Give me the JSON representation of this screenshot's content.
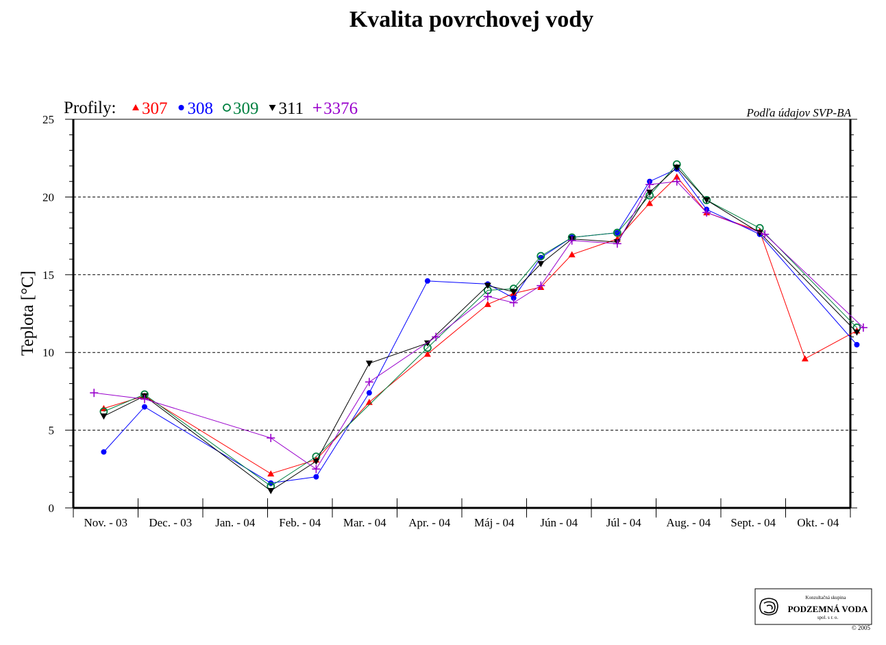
{
  "colors": {
    "s307": "#ff0000",
    "s308": "#0000ff",
    "s309": "#008040",
    "s311": "#000000",
    "s3376": "#9900cc"
  },
  "legend": {
    "prefix": "Profily:"
  },
  "source_note": "Podľa údajov SVP-BA",
  "logo": {
    "line1": "Konzultačná skupina",
    "line2": "PODZEMNÁ VODA",
    "line3": "spol. s r. o.",
    "copyright": "© 2005"
  },
  "chart_data": {
    "type": "line",
    "title": "Kvalita povrchovej vody",
    "ylabel": "Teplota [°C]",
    "xlabel": "",
    "ylim": [
      0,
      25
    ],
    "yticks": [
      0,
      5,
      10,
      15,
      20,
      25
    ],
    "grid": "horizontal-dashed",
    "legend_position": "top-left",
    "x_unit": "month index (0 = Nov. 2003 start)",
    "xlim": [
      0,
      12
    ],
    "categories": [
      "Nov. - 03",
      "Dec. - 03",
      "Jan. - 04",
      "Feb. - 04",
      "Mar. - 04",
      "Apr. - 04",
      "Máj - 04",
      "Jún - 04",
      "Júl - 04",
      "Aug. - 04",
      "Sept. - 04",
      "Okt. - 04"
    ],
    "series": [
      {
        "name": "307",
        "marker": "triangle-up",
        "color": "#ff0000",
        "points": [
          [
            0.47,
            6.4
          ],
          [
            1.1,
            7.2
          ],
          [
            3.05,
            2.2
          ],
          [
            3.75,
            3.1
          ],
          [
            4.57,
            6.8
          ],
          [
            5.47,
            9.9
          ],
          [
            6.4,
            13.1
          ],
          [
            6.8,
            13.8
          ],
          [
            7.22,
            14.2
          ],
          [
            7.7,
            16.3
          ],
          [
            8.4,
            17.3
          ],
          [
            8.9,
            19.6
          ],
          [
            9.32,
            21.3
          ],
          [
            9.78,
            19.0
          ],
          [
            10.6,
            17.8
          ],
          [
            11.3,
            9.6
          ],
          [
            12.1,
            11.4
          ]
        ]
      },
      {
        "name": "308",
        "marker": "circle-filled",
        "color": "#0000ff",
        "points": [
          [
            0.47,
            3.6
          ],
          [
            1.1,
            6.5
          ],
          [
            3.05,
            1.6
          ],
          [
            3.75,
            2.0
          ],
          [
            4.57,
            7.4
          ],
          [
            5.47,
            14.6
          ],
          [
            6.4,
            14.4
          ],
          [
            6.8,
            13.5
          ],
          [
            7.22,
            16.1
          ],
          [
            7.7,
            17.4
          ],
          [
            8.4,
            17.7
          ],
          [
            8.9,
            21.0
          ],
          [
            9.32,
            21.8
          ],
          [
            9.78,
            19.2
          ],
          [
            10.6,
            17.6
          ],
          [
            12.1,
            10.5
          ]
        ]
      },
      {
        "name": "309",
        "marker": "circle-open",
        "color": "#008040",
        "points": [
          [
            0.47,
            6.2
          ],
          [
            1.1,
            7.3
          ],
          [
            3.05,
            1.4
          ],
          [
            3.75,
            3.3
          ],
          [
            5.47,
            10.3
          ],
          [
            6.4,
            14.0
          ],
          [
            6.8,
            14.1
          ],
          [
            7.22,
            16.2
          ],
          [
            7.7,
            17.4
          ],
          [
            8.4,
            17.7
          ],
          [
            8.9,
            20.1
          ],
          [
            9.32,
            22.1
          ],
          [
            9.78,
            19.8
          ],
          [
            10.6,
            18.0
          ],
          [
            12.1,
            11.6
          ]
        ]
      },
      {
        "name": "311",
        "marker": "triangle-down",
        "color": "#000000",
        "points": [
          [
            0.47,
            5.9
          ],
          [
            1.1,
            7.2
          ],
          [
            3.05,
            1.1
          ],
          [
            3.75,
            3.0
          ],
          [
            4.57,
            9.3
          ],
          [
            5.47,
            10.6
          ],
          [
            6.4,
            14.3
          ],
          [
            6.8,
            13.9
          ],
          [
            7.22,
            15.7
          ],
          [
            7.7,
            17.3
          ],
          [
            8.4,
            17.1
          ],
          [
            8.9,
            20.3
          ],
          [
            9.32,
            21.9
          ],
          [
            9.78,
            19.8
          ],
          [
            10.6,
            17.7
          ],
          [
            12.1,
            11.3
          ]
        ]
      },
      {
        "name": "3376",
        "marker": "plus",
        "color": "#9900cc",
        "points": [
          [
            0.32,
            7.4
          ],
          [
            1.1,
            7.0
          ],
          [
            3.05,
            4.5
          ],
          [
            3.75,
            2.5
          ],
          [
            4.57,
            8.1
          ],
          [
            5.6,
            11.0
          ],
          [
            6.4,
            13.6
          ],
          [
            6.8,
            13.2
          ],
          [
            7.22,
            14.3
          ],
          [
            7.7,
            17.2
          ],
          [
            8.4,
            17.0
          ],
          [
            8.9,
            20.8
          ],
          [
            9.32,
            21.0
          ],
          [
            9.78,
            19.0
          ],
          [
            10.68,
            17.6
          ],
          [
            12.2,
            11.6
          ]
        ]
      }
    ]
  }
}
